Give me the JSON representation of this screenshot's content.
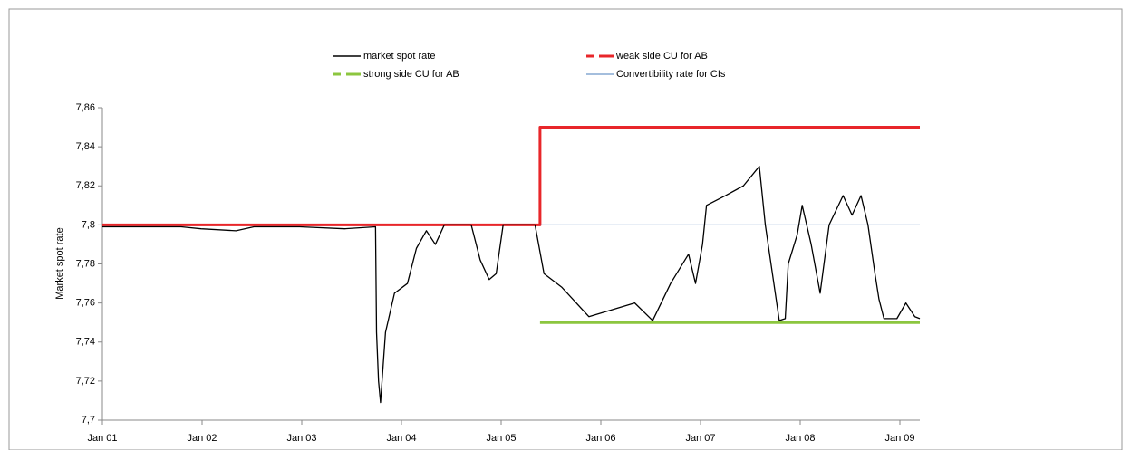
{
  "chart_data": {
    "type": "line",
    "y_label": "Market spot rate",
    "xlim": [
      2001,
      2009.2
    ],
    "xticks": [
      {
        "value": 2001,
        "label": "Jan 01"
      },
      {
        "value": 2002,
        "label": "Jan 02"
      },
      {
        "value": 2003,
        "label": "Jan 03"
      },
      {
        "value": 2004,
        "label": "Jan 04"
      },
      {
        "value": 2005,
        "label": "Jan 05"
      },
      {
        "value": 2006,
        "label": "Jan 06"
      },
      {
        "value": 2007,
        "label": "Jan 07"
      },
      {
        "value": 2008,
        "label": "Jan 08"
      },
      {
        "value": 2009,
        "label": "Jan 09"
      }
    ],
    "ylim": [
      7.7,
      7.86
    ],
    "yticks": [
      {
        "value": 7.7,
        "label": "7,7"
      },
      {
        "value": 7.72,
        "label": "7,72"
      },
      {
        "value": 7.74,
        "label": "7,74"
      },
      {
        "value": 7.76,
        "label": "7,76"
      },
      {
        "value": 7.78,
        "label": "7,78"
      },
      {
        "value": 7.8,
        "label": "7,8"
      },
      {
        "value": 7.82,
        "label": "7,82"
      },
      {
        "value": 7.84,
        "label": "7,84"
      },
      {
        "value": 7.86,
        "label": "7,86"
      }
    ],
    "series": [
      {
        "name": "weak side CU for AB",
        "color": "#e8262a",
        "dash": true,
        "width": 3,
        "x": [
          2001,
          2005.39,
          2005.39,
          2009.2
        ],
        "values": [
          7.8,
          7.8,
          7.85,
          7.85
        ]
      },
      {
        "name": "strong side CU for AB",
        "color": "#8cc63f",
        "dash": true,
        "width": 3,
        "x": [
          2005.39,
          2009.2
        ],
        "values": [
          7.75,
          7.75
        ]
      },
      {
        "name": "Convertibility rate for CIs",
        "color": "#4a7ebb",
        "dash": false,
        "width": 1,
        "x": [
          2005.39,
          2009.2
        ],
        "values": [
          7.8,
          7.8
        ]
      },
      {
        "name": "market spot rate",
        "color": "#000000",
        "dash": false,
        "width": 1.3,
        "x": [
          2001,
          2001.79,
          2001.99,
          2002.34,
          2002.52,
          2002.98,
          2003.43,
          2003.74,
          2003.75,
          2003.77,
          2003.79,
          2003.84,
          2003.93,
          2004.06,
          2004.15,
          2004.25,
          2004.34,
          2004.43,
          2004.7,
          2004.79,
          2004.88,
          2004.95,
          2005.02,
          2005.34,
          2005.43,
          2005.61,
          2005.88,
          2006.34,
          2006.52,
          2006.7,
          2006.88,
          2006.95,
          2007.02,
          2007.06,
          2007.25,
          2007.43,
          2007.59,
          2007.65,
          2007.75,
          2007.79,
          2007.85,
          2007.88,
          2007.97,
          2008.02,
          2008.11,
          2008.2,
          2008.29,
          2008.43,
          2008.52,
          2008.61,
          2008.68,
          2008.75,
          2008.79,
          2008.84,
          2008.97,
          2009.06,
          2009.15,
          2009.2
        ],
        "values": [
          7.799,
          7.799,
          7.798,
          7.797,
          7.799,
          7.799,
          7.798,
          7.799,
          7.745,
          7.72,
          7.709,
          7.745,
          7.765,
          7.77,
          7.788,
          7.797,
          7.79,
          7.8,
          7.8,
          7.782,
          7.772,
          7.775,
          7.8,
          7.8,
          7.775,
          7.768,
          7.753,
          7.76,
          7.751,
          7.77,
          7.785,
          7.77,
          7.79,
          7.81,
          7.815,
          7.82,
          7.83,
          7.8,
          7.765,
          7.751,
          7.752,
          7.78,
          7.795,
          7.81,
          7.79,
          7.765,
          7.8,
          7.815,
          7.805,
          7.815,
          7.8,
          7.775,
          7.762,
          7.752,
          7.752,
          7.76,
          7.753,
          7.752
        ]
      }
    ],
    "legend_order": [
      3,
      0,
      1,
      2
    ],
    "grid": false
  }
}
